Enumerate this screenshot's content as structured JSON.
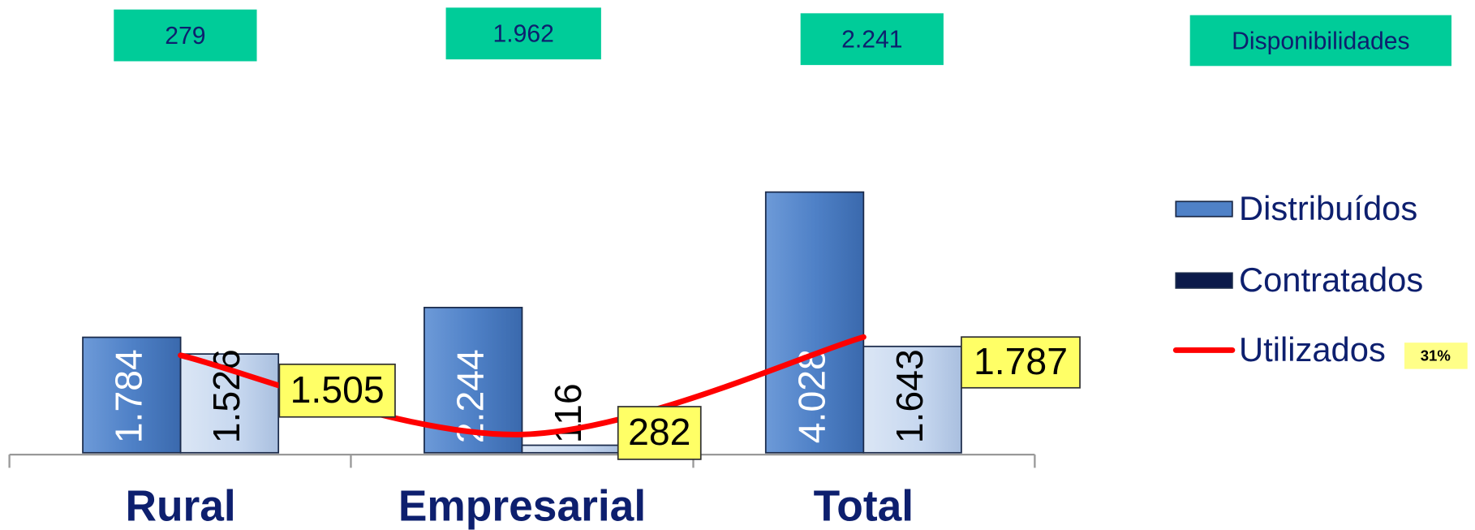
{
  "chart_data": {
    "type": "bar",
    "categories": [
      "Rural",
      "Empresarial",
      "Total"
    ],
    "series": [
      {
        "name": "Distribuídos",
        "color": "#4f81c7",
        "values": [
          1784,
          2244,
          4028
        ],
        "value_labels": [
          "1.784",
          "2.244",
          "4.028"
        ]
      },
      {
        "name": "Contratados",
        "color": "#c6d7ef",
        "legend_color": "#0b1a4a",
        "values": [
          1526,
          116,
          1643
        ],
        "value_labels": [
          "1.526",
          "116",
          "1.643"
        ]
      },
      {
        "name": "Utilizados",
        "type": "line",
        "color": "#ff0000",
        "values": [
          1505,
          282,
          1787
        ],
        "value_labels": [
          "1.505",
          "282",
          "1.787"
        ]
      }
    ],
    "legend_annotation": {
      "value": 31,
      "label": "31%"
    },
    "disponibilidades": {
      "label": "Disponibilidades",
      "color": "#00cc99",
      "values": [
        279,
        1962,
        2241
      ],
      "value_labels": [
        "279",
        "1.962",
        "2.241"
      ]
    }
  }
}
